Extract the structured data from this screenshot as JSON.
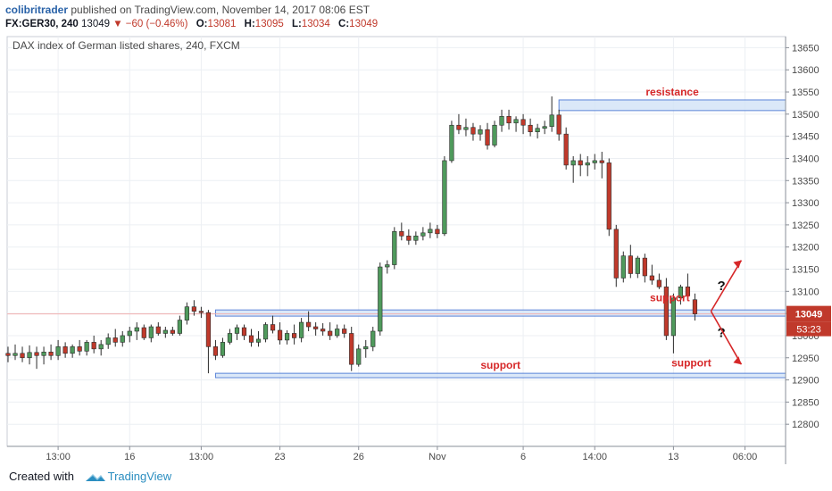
{
  "header": {
    "author": "colibritrader",
    "published_text": "published on TradingView.com, November 14, 2017 08:06 EST",
    "symbol": "FX:GER30, 240",
    "last": "13049",
    "change": "▼ −60 (−0.46%)",
    "o_label": "O:",
    "o_value": "13081",
    "h_label": "H:",
    "h_value": "13095",
    "l_label": "L:",
    "l_value": "13034",
    "c_label": "C:",
    "c_value": "13049"
  },
  "footer": {
    "created_with": "Created with",
    "brand": "TradingView"
  },
  "colors": {
    "up": "#4f9a5c",
    "down": "#c0392b",
    "zone_fill": "#d5e5f7",
    "zone_stroke": "#3f6fd1",
    "annotation": "#d62728",
    "price_tag": "#c0392b",
    "grid": "#eceff3"
  },
  "chart_data": {
    "type": "candlestick",
    "title": "DAX index of German listed shares, 240, FXCM",
    "ylim": [
      12750,
      13675
    ],
    "y_ticks": [
      12800,
      12850,
      12900,
      12950,
      13000,
      13050,
      13100,
      13150,
      13200,
      13250,
      13300,
      13350,
      13400,
      13450,
      13500,
      13550,
      13600,
      13650
    ],
    "x_ticks": [
      {
        "label": "13:00",
        "index": 7
      },
      {
        "label": "16",
        "index": 17
      },
      {
        "label": "13:00",
        "index": 27
      },
      {
        "label": "23",
        "index": 38
      },
      {
        "label": "26",
        "index": 49
      },
      {
        "label": "Nov",
        "index": 60
      },
      {
        "label": "6",
        "index": 72
      },
      {
        "label": "14:00",
        "index": 82
      },
      {
        "label": "13",
        "index": 93
      },
      {
        "label": "06:00",
        "index": 103
      }
    ],
    "last_price": "13049",
    "countdown": "53:23",
    "candles": [
      [
        12960,
        12975,
        12940,
        12955
      ],
      [
        12955,
        12980,
        12945,
        12960
      ],
      [
        12960,
        12975,
        12940,
        12950
      ],
      [
        12950,
        12978,
        12935,
        12962
      ],
      [
        12962,
        12975,
        12925,
        12955
      ],
      [
        12955,
        12975,
        12935,
        12963
      ],
      [
        12963,
        12980,
        12945,
        12955
      ],
      [
        12955,
        12990,
        12945,
        12975
      ],
      [
        12975,
        12985,
        12950,
        12960
      ],
      [
        12960,
        12980,
        12950,
        12975
      ],
      [
        12975,
        12990,
        12955,
        12965
      ],
      [
        12965,
        12990,
        12955,
        12985
      ],
      [
        12985,
        13000,
        12960,
        12970
      ],
      [
        12970,
        12990,
        12955,
        12980
      ],
      [
        12980,
        13005,
        12970,
        12995
      ],
      [
        12995,
        13015,
        12975,
        12985
      ],
      [
        12985,
        13010,
        12975,
        13000
      ],
      [
        13000,
        13020,
        12985,
        13010
      ],
      [
        13010,
        13030,
        12990,
        13018
      ],
      [
        13018,
        13025,
        12990,
        12995
      ],
      [
        12995,
        13025,
        12985,
        13020
      ],
      [
        13020,
        13030,
        13000,
        13005
      ],
      [
        13005,
        13020,
        12995,
        13012
      ],
      [
        13012,
        13020,
        13000,
        13005
      ],
      [
        13005,
        13045,
        13000,
        13035
      ],
      [
        13035,
        13075,
        13025,
        13065
      ],
      [
        13065,
        13080,
        13045,
        13055
      ],
      [
        13055,
        13065,
        13040,
        13052
      ],
      [
        13052,
        13058,
        12915,
        12975
      ],
      [
        12975,
        12990,
        12945,
        12955
      ],
      [
        12955,
        12995,
        12950,
        12985
      ],
      [
        12985,
        13015,
        12980,
        13005
      ],
      [
        13005,
        13025,
        12990,
        13018
      ],
      [
        13018,
        13025,
        12990,
        13000
      ],
      [
        13000,
        13015,
        12975,
        12985
      ],
      [
        12985,
        13010,
        12975,
        12992
      ],
      [
        12992,
        13030,
        12985,
        13025
      ],
      [
        13025,
        13045,
        13005,
        13012
      ],
      [
        13012,
        13030,
        12980,
        12990
      ],
      [
        12990,
        13012,
        12980,
        13005
      ],
      [
        13005,
        13025,
        12980,
        12995
      ],
      [
        12995,
        13040,
        12985,
        13030
      ],
      [
        13030,
        13055,
        13010,
        13020
      ],
      [
        13020,
        13030,
        13000,
        13015
      ],
      [
        13015,
        13028,
        13000,
        13010
      ],
      [
        13010,
        13030,
        12990,
        13000
      ],
      [
        13000,
        13025,
        12995,
        13015
      ],
      [
        13015,
        13025,
        12995,
        13005
      ],
      [
        13005,
        13020,
        12920,
        12935
      ],
      [
        12935,
        12980,
        12930,
        12970
      ],
      [
        12970,
        12990,
        12950,
        12975
      ],
      [
        12975,
        13020,
        12965,
        13010
      ],
      [
        13010,
        13165,
        13000,
        13155
      ],
      [
        13155,
        13170,
        13140,
        13160
      ],
      [
        13160,
        13245,
        13150,
        13235
      ],
      [
        13235,
        13255,
        13215,
        13225
      ],
      [
        13225,
        13240,
        13205,
        13215
      ],
      [
        13215,
        13235,
        13205,
        13225
      ],
      [
        13225,
        13245,
        13215,
        13232
      ],
      [
        13232,
        13255,
        13220,
        13240
      ],
      [
        13240,
        13250,
        13220,
        13230
      ],
      [
        13230,
        13405,
        13225,
        13395
      ],
      [
        13395,
        13485,
        13390,
        13475
      ],
      [
        13475,
        13500,
        13455,
        13465
      ],
      [
        13465,
        13490,
        13450,
        13470
      ],
      [
        13470,
        13480,
        13440,
        13455
      ],
      [
        13455,
        13475,
        13440,
        13465
      ],
      [
        13465,
        13480,
        13420,
        13430
      ],
      [
        13430,
        13485,
        13425,
        13475
      ],
      [
        13475,
        13510,
        13460,
        13495
      ],
      [
        13495,
        13510,
        13465,
        13480
      ],
      [
        13480,
        13495,
        13460,
        13488
      ],
      [
        13488,
        13500,
        13455,
        13475
      ],
      [
        13475,
        13490,
        13450,
        13460
      ],
      [
        13460,
        13478,
        13445,
        13468
      ],
      [
        13468,
        13485,
        13455,
        13472
      ],
      [
        13472,
        13540,
        13460,
        13498
      ],
      [
        13498,
        13510,
        13440,
        13455
      ],
      [
        13455,
        13470,
        13375,
        13385
      ],
      [
        13385,
        13405,
        13345,
        13395
      ],
      [
        13395,
        13410,
        13360,
        13385
      ],
      [
        13385,
        13405,
        13360,
        13390
      ],
      [
        13390,
        13410,
        13375,
        13395
      ],
      [
        13395,
        13415,
        13355,
        13390
      ],
      [
        13390,
        13400,
        13225,
        13240
      ],
      [
        13240,
        13250,
        13110,
        13130
      ],
      [
        13130,
        13190,
        13120,
        13180
      ],
      [
        13180,
        13205,
        13130,
        13140
      ],
      [
        13140,
        13180,
        13130,
        13175
      ],
      [
        13175,
        13185,
        13120,
        13135
      ],
      [
        13135,
        13160,
        13115,
        13125
      ],
      [
        13125,
        13140,
        13105,
        13110
      ],
      [
        13110,
        13130,
        12990,
        13000
      ],
      [
        13000,
        13095,
        12960,
        13085
      ],
      [
        13085,
        13115,
        13070,
        13110
      ],
      [
        13110,
        13140,
        13080,
        13090
      ],
      [
        13081,
        13095,
        13034,
        13049
      ]
    ],
    "annotations": [
      {
        "type": "zone",
        "label": "resistance",
        "x_from": 77,
        "x_to": 109,
        "y_from": 13508,
        "y_to": 13532
      },
      {
        "type": "zone",
        "label": "",
        "x_from": 29,
        "x_to": 109,
        "y_from": 13044,
        "y_to": 13058
      },
      {
        "type": "zone",
        "label": "support",
        "x_from": 29,
        "x_to": 109,
        "y_from": 12905,
        "y_to": 12915
      },
      {
        "type": "text",
        "label": "support",
        "x": 92.5,
        "y": 13077
      },
      {
        "type": "text",
        "label": "support",
        "x": 95.5,
        "y": 12930
      },
      {
        "type": "text",
        "label": "?",
        "x": 99.7,
        "y": 13103
      },
      {
        "type": "text",
        "label": "?",
        "x": 99.7,
        "y": 12997
      }
    ]
  }
}
